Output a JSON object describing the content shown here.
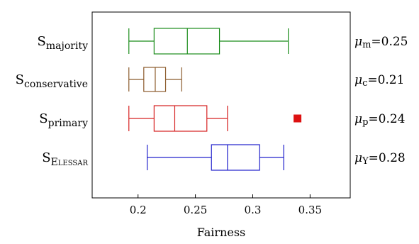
{
  "chart_data": {
    "type": "boxplot",
    "xlabel": "Fairness",
    "xlim": [
      0.16,
      0.385
    ],
    "xticks": [
      "0.2",
      "0.25",
      "0.3",
      "0.35"
    ],
    "grid": false,
    "series": [
      {
        "label_main": "S",
        "label_sub": "majority",
        "color": "#1a8c1a",
        "whisker_low": 0.192,
        "q1": 0.214,
        "median": 0.243,
        "q3": 0.271,
        "whisker_high": 0.331,
        "outliers": [],
        "mean_symbol": "μ",
        "mean_sub": "m",
        "mean_value": "=0.25"
      },
      {
        "label_main": "S",
        "label_sub": "conservative",
        "color": "#8b5a2b",
        "whisker_low": 0.192,
        "q1": 0.205,
        "median": 0.215,
        "q3": 0.224,
        "whisker_high": 0.238,
        "outliers": [],
        "mean_symbol": "μ",
        "mean_sub": "c",
        "mean_value": "=0.21"
      },
      {
        "label_main": "S",
        "label_sub": "primary",
        "color": "#d62020",
        "whisker_low": 0.192,
        "q1": 0.214,
        "median": 0.232,
        "q3": 0.26,
        "whisker_high": 0.278,
        "outliers": [
          0.339
        ],
        "mean_symbol": "μ",
        "mean_sub": "p",
        "mean_value": "=0.24"
      },
      {
        "label_main": "S",
        "label_sub": "Elessar",
        "color": "#2020cc",
        "whisker_low": 0.208,
        "q1": 0.264,
        "median": 0.278,
        "q3": 0.306,
        "whisker_high": 0.327,
        "outliers": [],
        "mean_symbol": "μ",
        "mean_sub": "Y",
        "mean_value": "=0.28"
      }
    ]
  }
}
